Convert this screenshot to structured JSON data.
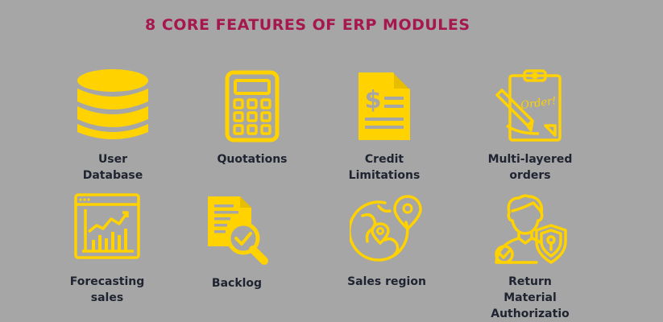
{
  "title": "8 CORE FEATURES OF ERP MODULES",
  "colors": {
    "background": "#a6a6a6",
    "title": "#a5174d",
    "icon": "#ffd200",
    "label": "#1f2430"
  },
  "features": [
    {
      "label": "User\nDatabase",
      "icon": "database-icon"
    },
    {
      "label": "Quotations",
      "icon": "calculator-icon"
    },
    {
      "label": "Credit\nLimitations",
      "icon": "invoice-dollar-icon"
    },
    {
      "label": "Multi-layered\norders",
      "icon": "order-clipboard-icon"
    },
    {
      "label": "Forecasting\nsales",
      "icon": "forecast-chart-icon"
    },
    {
      "label": "Backlog",
      "icon": "document-search-icon"
    },
    {
      "label": "Sales region",
      "icon": "globe-location-icon"
    },
    {
      "label": "Return\nMaterial\nAuthorizatio",
      "icon": "person-shield-icon"
    }
  ]
}
